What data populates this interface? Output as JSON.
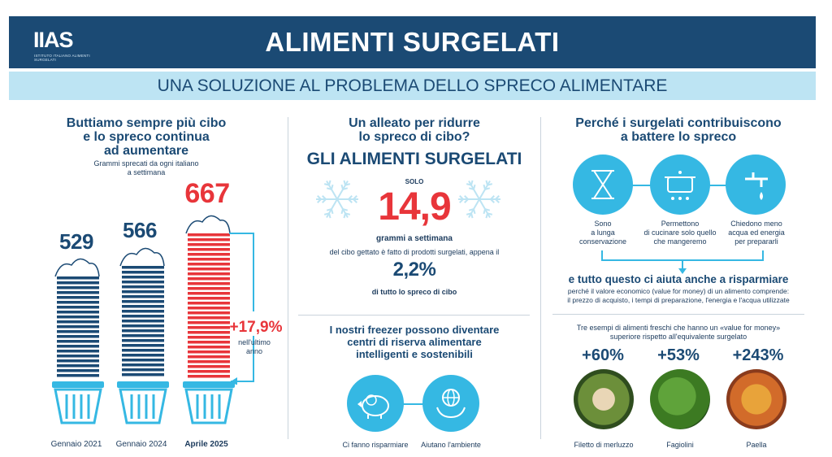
{
  "header": {
    "logo": "IIAS",
    "logo_sub": "ISTITUTO ITALIANO ALIMENTI SURGELATI",
    "title": "ALIMENTI SURGELATI",
    "subtitle": "UNA SOLUZIONE AL PROBLEMA DELLO SPRECO ALIMENTARE"
  },
  "left": {
    "heading": [
      "Buttiamo sempre più cibo",
      "e lo spreco continua",
      "ad aumentare"
    ],
    "note": [
      "Grammi sprecati da ogni italiano",
      "a settimana"
    ],
    "bins": [
      {
        "value": "529",
        "label": "Gennaio 2021",
        "color": "#1b4a74"
      },
      {
        "value": "566",
        "label": "Gennaio 2024",
        "color": "#1b4a74"
      },
      {
        "value": "667",
        "label": "Aprile 2025",
        "color": "#e8353a"
      }
    ],
    "growth": "+17,9%",
    "growth_note": [
      "nell'ultimo",
      "anno"
    ]
  },
  "middle": {
    "q": [
      "Un alleato per ridurre",
      "lo spreco di cibo?"
    ],
    "headline": "GLI ALIMENTI SURGELATI",
    "solo": "SOLO",
    "big_value": "14,9",
    "unit": "grammi a settimana",
    "desc": "del cibo gettato è fatto di prodotti surgelati, appena il",
    "pct": "2,2%",
    "pct_note": "di tutto lo spreco di cibo",
    "freezer": [
      "I nostri freezer possono diventare",
      "centri di riserva alimentare",
      "intelligenti e sostenibili"
    ],
    "icons": [
      {
        "label": "Ci fanno risparmiare",
        "icon": "piggy-bank-icon"
      },
      {
        "label": "Aiutano l'ambiente",
        "icon": "globe-hands-icon"
      }
    ]
  },
  "right": {
    "heading": [
      "Perché i surgelati contribuiscono",
      "a battere lo spreco"
    ],
    "reasons": [
      {
        "label": [
          "Sono",
          "a lunga",
          "conservazione"
        ],
        "icon": "hourglass-icon"
      },
      {
        "label": [
          "Permettono",
          "di cucinare solo quello",
          "che mangeremo"
        ],
        "icon": "pot-icon"
      },
      {
        "label": [
          "Chiedono meno",
          "acqua ed energia",
          "per prepararli"
        ],
        "icon": "faucet-icon"
      }
    ],
    "save_heading": "e tutto questo ci aiuta anche a risparmiare",
    "save_note": [
      "perché il valore economico (value for money) di un alimento comprende:",
      "il prezzo di acquisto, i tempi di preparazione, l'energia e l'acqua utilizzate"
    ],
    "examples_note": [
      "Tre esempi di alimenti freschi che hanno un «value for money»",
      "superiore rispetto all'equivalente surgelato"
    ],
    "foods": [
      {
        "pct": "+60%",
        "label": "Filetto di merluzzo"
      },
      {
        "pct": "+53%",
        "label": "Fagiolini"
      },
      {
        "pct": "+243%",
        "label": "Paella"
      }
    ]
  },
  "colors": {
    "navy": "#1b4a74",
    "light": "#bde4f3",
    "red": "#e8353a",
    "cyan": "#35b8e3"
  }
}
